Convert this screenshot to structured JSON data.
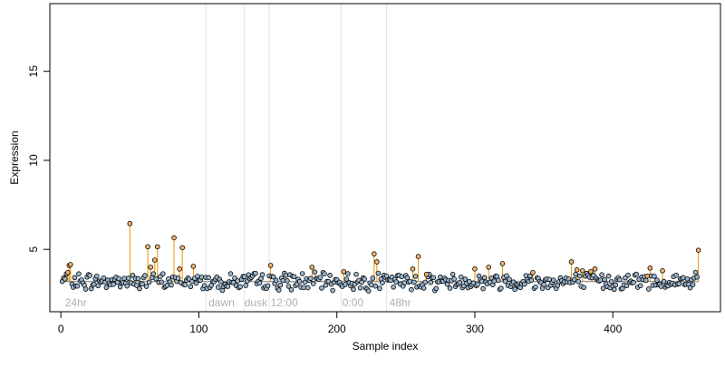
{
  "chart_data": {
    "type": "scatter",
    "xlabel": "Sample index",
    "ylabel": "Expression",
    "xlim": [
      -8,
      478
    ],
    "ylim": [
      1.5,
      18.8
    ],
    "x_ticks": [
      0,
      100,
      200,
      300,
      400
    ],
    "y_ticks": [
      5,
      10,
      15
    ],
    "baseline": 3.2,
    "n_samples": 462,
    "grid": false,
    "legend": "none",
    "colors": {
      "point_fill": "#9ab6cf",
      "point_outline": "#000000",
      "highlight_fill": "#f4b26a",
      "drop_line": "#e69500",
      "baseline_line": "#9a9a9a",
      "divider": "#e3e3e3",
      "region_text": "#b0b0b0"
    },
    "dividers": [
      105,
      133,
      151,
      203,
      236
    ],
    "region_labels": [
      {
        "x": 3,
        "text": "24hr"
      },
      {
        "x": 107,
        "text": "dawn"
      },
      {
        "x": 133,
        "text": "dusk"
      },
      {
        "x": 152,
        "text": "12:00"
      },
      {
        "x": 204,
        "text": "0:00"
      },
      {
        "x": 238,
        "text": "48hr"
      }
    ],
    "highlight_points": [
      {
        "x": 5,
        "y": 3.7
      },
      {
        "x": 6,
        "y": 4.1
      },
      {
        "x": 7,
        "y": 4.15
      },
      {
        "x": 50,
        "y": 6.45
      },
      {
        "x": 63,
        "y": 5.15
      },
      {
        "x": 65,
        "y": 4.0
      },
      {
        "x": 68,
        "y": 4.4
      },
      {
        "x": 70,
        "y": 5.15
      },
      {
        "x": 82,
        "y": 5.65
      },
      {
        "x": 86,
        "y": 3.9
      },
      {
        "x": 88,
        "y": 5.1
      },
      {
        "x": 96,
        "y": 4.05
      },
      {
        "x": 152,
        "y": 4.1
      },
      {
        "x": 182,
        "y": 4.0
      },
      {
        "x": 205,
        "y": 3.75
      },
      {
        "x": 227,
        "y": 4.75
      },
      {
        "x": 229,
        "y": 4.3
      },
      {
        "x": 255,
        "y": 3.9
      },
      {
        "x": 259,
        "y": 4.6
      },
      {
        "x": 265,
        "y": 3.6
      },
      {
        "x": 300,
        "y": 3.9
      },
      {
        "x": 310,
        "y": 4.0
      },
      {
        "x": 320,
        "y": 4.2
      },
      {
        "x": 342,
        "y": 3.7
      },
      {
        "x": 370,
        "y": 4.3
      },
      {
        "x": 374,
        "y": 3.85
      },
      {
        "x": 378,
        "y": 3.8
      },
      {
        "x": 384,
        "y": 3.75
      },
      {
        "x": 387,
        "y": 3.9
      },
      {
        "x": 425,
        "y": 3.5
      },
      {
        "x": 427,
        "y": 3.95
      },
      {
        "x": 436,
        "y": 3.8
      },
      {
        "x": 462,
        "y": 4.95
      }
    ]
  }
}
